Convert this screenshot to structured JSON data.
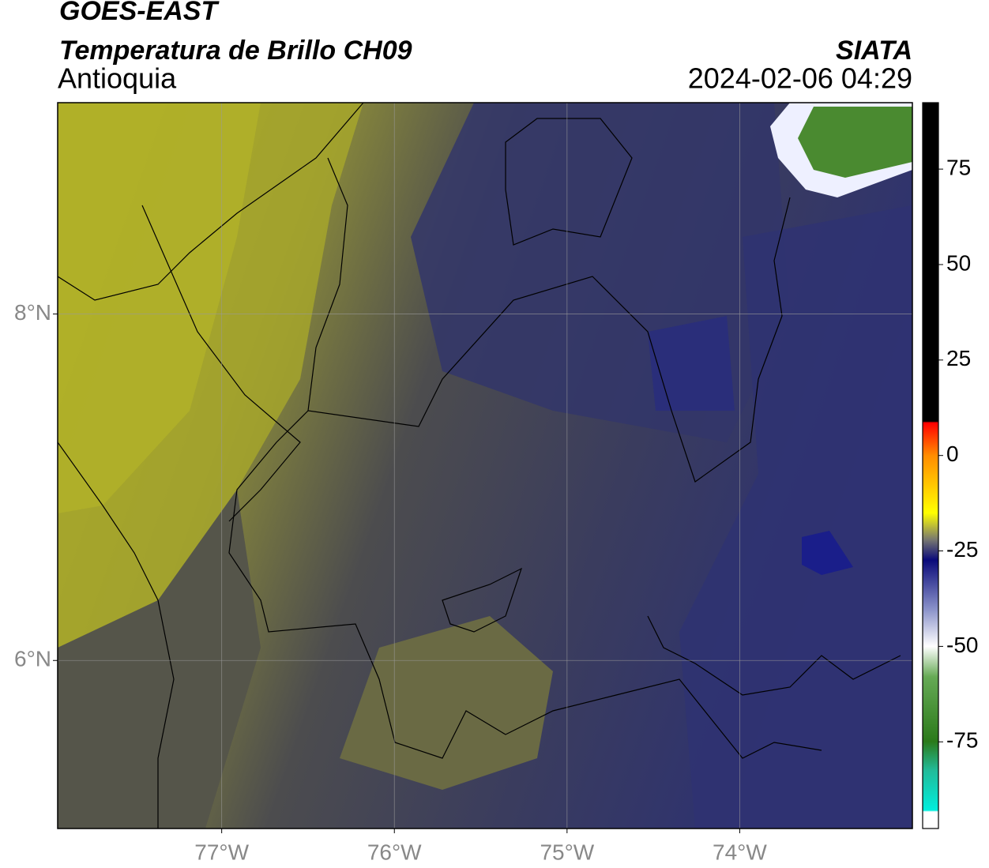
{
  "header": {
    "title": "GOES-EAST",
    "subtitle": "Temperatura de Brillo CH09",
    "region": "Antioquia",
    "source": "SIATA",
    "datetime": "2024-02-06 04:29"
  },
  "map": {
    "lonlim": [
      -77.95,
      -73.0
    ],
    "latlim": [
      5.03,
      9.22
    ],
    "xticks": [
      {
        "value": -77,
        "label": "77°W"
      },
      {
        "value": -76,
        "label": "76°W"
      },
      {
        "value": -75,
        "label": "75°W"
      },
      {
        "value": -74,
        "label": "74°W"
      }
    ],
    "yticks": [
      {
        "value": 8,
        "label": "8°N"
      },
      {
        "value": 6,
        "label": "6°N"
      }
    ],
    "grid": true
  },
  "colorbar": {
    "lim": [
      -97.7,
      92.4
    ],
    "ticks": [
      75,
      50,
      25,
      0,
      -25,
      -50,
      -75
    ]
  }
}
